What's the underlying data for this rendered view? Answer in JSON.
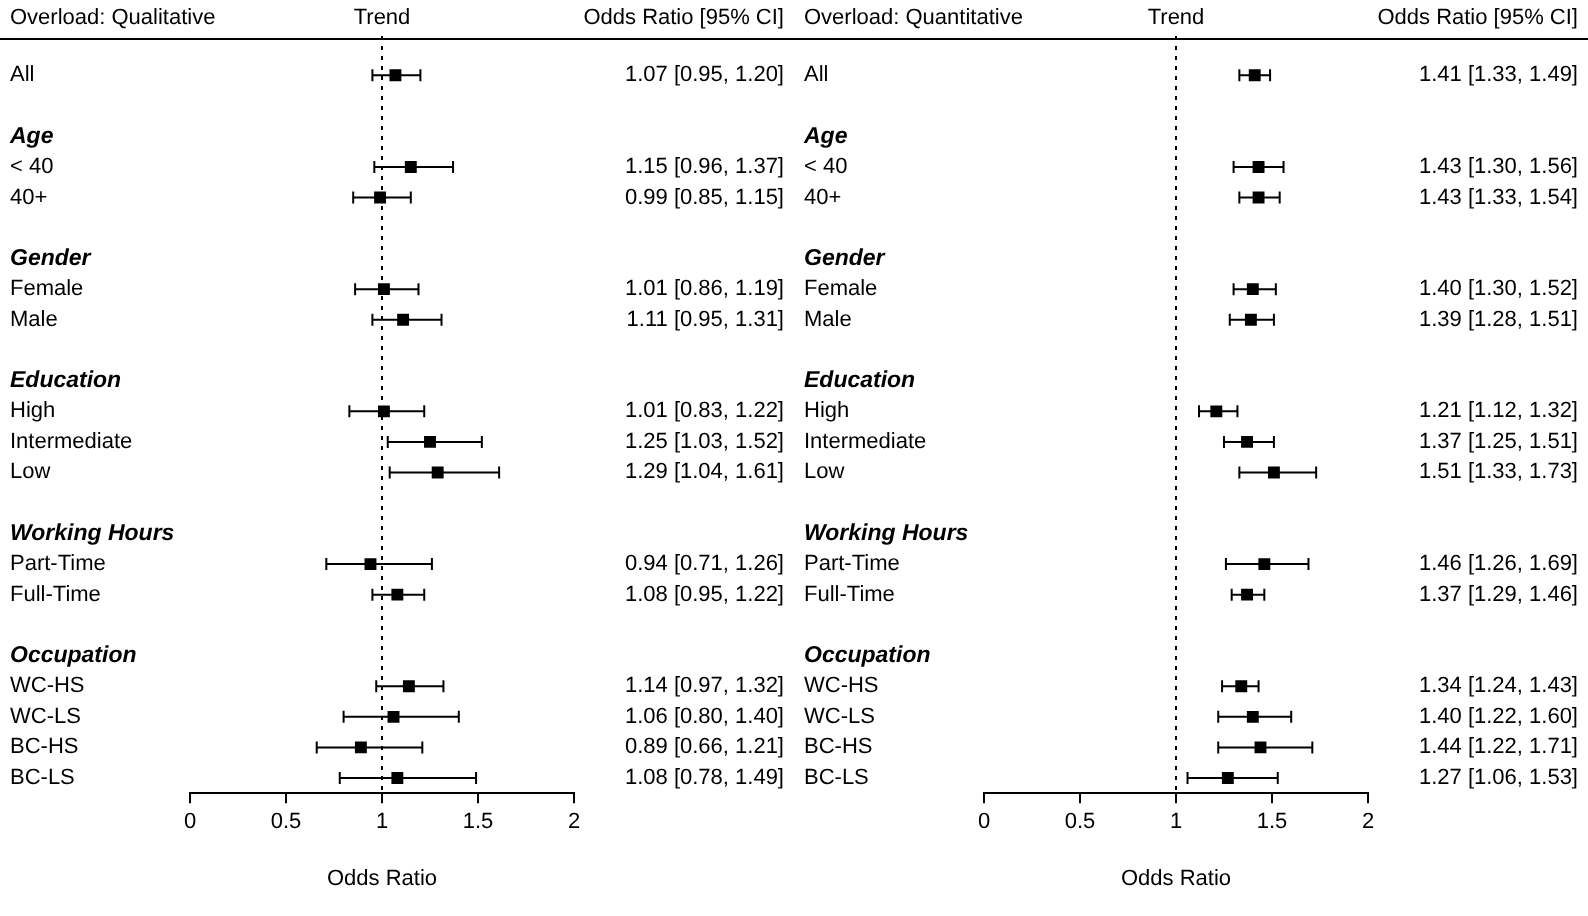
{
  "chart_data": [
    {
      "type": "scatter",
      "orientation": "horizontal",
      "title": "Overload: Qualitative",
      "xlabel": "Odds Ratio",
      "annotations": [
        "Odds Ratio [95% CI]"
      ],
      "categories": [
        "All",
        null,
        "Age",
        "< 40",
        "40+",
        null,
        "Gender",
        "Female",
        "Male",
        null,
        "Education",
        "High",
        "Intermediate",
        "Low",
        null,
        "Working Hours",
        "Part-Time",
        "Full-Time",
        null,
        "Occupation",
        "WC-HS",
        "WC-LS",
        "BC-HS",
        "BC-LS"
      ],
      "values": [
        1.07,
        null,
        null,
        1.15,
        0.99,
        null,
        null,
        1.01,
        1.11,
        null,
        null,
        1.01,
        1.25,
        1.29,
        null,
        null,
        0.94,
        1.08,
        null,
        null,
        1.14,
        1.06,
        0.89,
        1.08
      ],
      "errors": [
        [
          0.95,
          1.2
        ],
        null,
        null,
        [
          0.96,
          1.37
        ],
        [
          0.85,
          1.15
        ],
        null,
        null,
        [
          0.86,
          1.19
        ],
        [
          0.95,
          1.31
        ],
        null,
        null,
        [
          0.83,
          1.22
        ],
        [
          1.03,
          1.52
        ],
        [
          1.04,
          1.61
        ],
        null,
        null,
        [
          0.71,
          1.26
        ],
        [
          0.95,
          1.22
        ],
        null,
        null,
        [
          0.97,
          1.32
        ],
        [
          0.8,
          1.4
        ],
        [
          0.66,
          1.21
        ],
        [
          0.78,
          1.49
        ]
      ],
      "value_labels": [
        "1.07 [0.95, 1.20]",
        null,
        null,
        "1.15 [0.96, 1.37]",
        "0.99 [0.85, 1.15]",
        null,
        null,
        "1.01 [0.86, 1.19]",
        "1.11 [0.95, 1.31]",
        null,
        null,
        "1.01 [0.83, 1.22]",
        "1.25 [1.03, 1.52]",
        "1.29 [1.04, 1.61]",
        null,
        null,
        "0.94 [0.71, 1.26]",
        "1.08 [0.95, 1.22]",
        null,
        null,
        "1.14 [0.97, 1.32]",
        "1.06 [0.80, 1.40]",
        "0.89 [0.66, 1.21]",
        "1.08 [0.78, 1.49]"
      ],
      "color": "#000000",
      "marker": "square",
      "xlim": [
        0,
        2
      ],
      "xticks": [
        0,
        0.5,
        1,
        1.5,
        2
      ],
      "grid": false,
      "legend": false,
      "ref_lines": [
        {
          "axis": "x",
          "value": 1,
          "label": "Trend",
          "line_style": "dotted",
          "color": "#000000"
        }
      ]
    },
    {
      "type": "scatter",
      "orientation": "horizontal",
      "title": "Overload: Quantitative",
      "xlabel": "Odds Ratio",
      "annotations": [
        "Odds Ratio [95% CI]"
      ],
      "categories": [
        "All",
        null,
        "Age",
        "< 40",
        "40+",
        null,
        "Gender",
        "Female",
        "Male",
        null,
        "Education",
        "High",
        "Intermediate",
        "Low",
        null,
        "Working Hours",
        "Part-Time",
        "Full-Time",
        null,
        "Occupation",
        "WC-HS",
        "WC-LS",
        "BC-HS",
        "BC-LS"
      ],
      "values": [
        1.41,
        null,
        null,
        1.43,
        1.43,
        null,
        null,
        1.4,
        1.39,
        null,
        null,
        1.21,
        1.37,
        1.51,
        null,
        null,
        1.46,
        1.37,
        null,
        null,
        1.34,
        1.4,
        1.44,
        1.27
      ],
      "errors": [
        [
          1.33,
          1.49
        ],
        null,
        null,
        [
          1.3,
          1.56
        ],
        [
          1.33,
          1.54
        ],
        null,
        null,
        [
          1.3,
          1.52
        ],
        [
          1.28,
          1.51
        ],
        null,
        null,
        [
          1.12,
          1.32
        ],
        [
          1.25,
          1.51
        ],
        [
          1.33,
          1.73
        ],
        null,
        null,
        [
          1.26,
          1.69
        ],
        [
          1.29,
          1.46
        ],
        null,
        null,
        [
          1.24,
          1.43
        ],
        [
          1.22,
          1.6
        ],
        [
          1.22,
          1.71
        ],
        [
          1.06,
          1.53
        ]
      ],
      "value_labels": [
        "1.41 [1.33, 1.49]",
        null,
        null,
        "1.43 [1.30, 1.56]",
        "1.43 [1.33, 1.54]",
        null,
        null,
        "1.40 [1.30, 1.52]",
        "1.39 [1.28, 1.51]",
        null,
        null,
        "1.21 [1.12, 1.32]",
        "1.37 [1.25, 1.51]",
        "1.51 [1.33, 1.73]",
        null,
        null,
        "1.46 [1.26, 1.69]",
        "1.37 [1.29, 1.46]",
        null,
        null,
        "1.34 [1.24, 1.43]",
        "1.40 [1.22, 1.60]",
        "1.44 [1.22, 1.71]",
        "1.27 [1.06, 1.53]"
      ],
      "color": "#000000",
      "marker": "square",
      "xlim": [
        0,
        2
      ],
      "xticks": [
        0,
        0.5,
        1,
        1.5,
        2
      ],
      "grid": false,
      "legend": false,
      "ref_lines": [
        {
          "axis": "x",
          "value": 1,
          "label": "Trend",
          "line_style": "dotted",
          "color": "#000000"
        }
      ]
    }
  ]
}
